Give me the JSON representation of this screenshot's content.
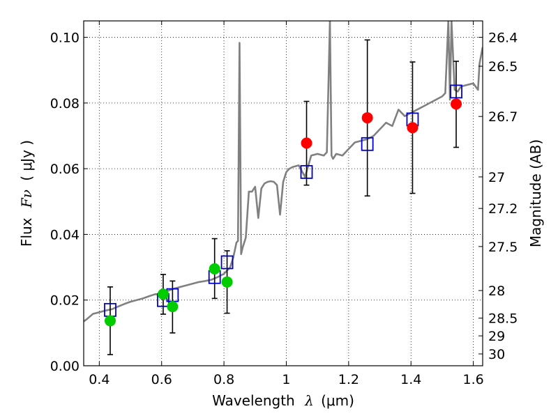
{
  "chart_data": {
    "type": "scatter",
    "title": "",
    "xlabel": "Wavelength",
    "xlabel_symbol": "λ",
    "xlabel_unit": "(μm)",
    "ylabel": "Flux",
    "ylabel_symbol": "Fν",
    "ylabel_unit": "( μJy )",
    "ylabel_right": "Magnitude (AB)",
    "xlim": [
      0.35,
      1.63
    ],
    "ylim": [
      0.0,
      0.105
    ],
    "grid": true,
    "x_ticks": [
      0.4,
      0.6,
      0.8,
      1.0,
      1.2,
      1.4,
      1.6
    ],
    "x_tick_labels": [
      "0.4",
      "0.6",
      "0.8",
      "1",
      "1.2",
      "1.4",
      "1.6"
    ],
    "y_ticks": [
      0.0,
      0.02,
      0.04,
      0.06,
      0.08,
      0.1
    ],
    "y_tick_labels": [
      "0.00",
      "0.02",
      "0.04",
      "0.06",
      "0.08",
      "0.10"
    ],
    "right_ticks": [
      {
        "label": "26.4",
        "flux": 0.1
      },
      {
        "label": "26.5",
        "flux": 0.0912
      },
      {
        "label": "26.7",
        "flux": 0.0759
      },
      {
        "label": "27",
        "flux": 0.0575
      },
      {
        "label": "27.2",
        "flux": 0.0479
      },
      {
        "label": "27.5",
        "flux": 0.0363
      },
      {
        "label": "28",
        "flux": 0.0229
      },
      {
        "label": "28.5",
        "flux": 0.0145
      },
      {
        "label": "29",
        "flux": 0.0091
      },
      {
        "label": "30",
        "flux": 0.0036
      }
    ],
    "series": [
      {
        "kind": "line",
        "color": "#808080",
        "x": [
          0.35,
          0.36,
          0.37,
          0.38,
          0.4,
          0.42,
          0.44,
          0.46,
          0.48,
          0.5,
          0.52,
          0.54,
          0.56,
          0.58,
          0.6,
          0.62,
          0.64,
          0.66,
          0.68,
          0.7,
          0.72,
          0.74,
          0.76,
          0.78,
          0.8,
          0.82,
          0.83,
          0.84,
          0.845,
          0.85,
          0.855,
          0.86,
          0.87,
          0.88,
          0.89,
          0.9,
          0.91,
          0.92,
          0.93,
          0.94,
          0.95,
          0.96,
          0.97,
          0.98,
          0.99,
          1.0,
          1.01,
          1.02,
          1.04,
          1.06,
          1.08,
          1.1,
          1.12,
          1.13,
          1.14,
          1.145,
          1.15,
          1.16,
          1.18,
          1.2,
          1.22,
          1.24,
          1.26,
          1.28,
          1.3,
          1.32,
          1.34,
          1.36,
          1.38,
          1.4,
          1.42,
          1.44,
          1.46,
          1.48,
          1.5,
          1.51,
          1.52,
          1.525,
          1.53,
          1.54,
          1.55,
          1.56,
          1.58,
          1.6,
          1.615,
          1.62,
          1.63
        ],
        "y": [
          0.0135,
          0.0142,
          0.015,
          0.0158,
          0.0163,
          0.0168,
          0.0172,
          0.018,
          0.0188,
          0.0195,
          0.02,
          0.0205,
          0.0212,
          0.0218,
          0.0215,
          0.0228,
          0.0235,
          0.024,
          0.0245,
          0.025,
          0.0255,
          0.0258,
          0.0262,
          0.027,
          0.028,
          0.03,
          0.033,
          0.0375,
          0.038,
          0.0983,
          0.034,
          0.036,
          0.039,
          0.053,
          0.053,
          0.0545,
          0.045,
          0.054,
          0.0555,
          0.056,
          0.0562,
          0.056,
          0.055,
          0.046,
          0.056,
          0.059,
          0.06,
          0.0605,
          0.061,
          0.0575,
          0.064,
          0.0645,
          0.064,
          0.065,
          0.105,
          0.064,
          0.063,
          0.0645,
          0.064,
          0.066,
          0.068,
          0.0685,
          0.069,
          0.07,
          0.072,
          0.074,
          0.073,
          0.078,
          0.076,
          0.077,
          0.078,
          0.079,
          0.08,
          0.081,
          0.082,
          0.083,
          0.105,
          0.081,
          0.105,
          0.084,
          0.0835,
          0.085,
          0.0855,
          0.086,
          0.084,
          0.092,
          0.097
        ]
      },
      {
        "kind": "squares",
        "color": "#0000cc",
        "x": [
          0.435,
          0.605,
          0.635,
          0.77,
          0.81,
          1.065,
          1.26,
          1.405,
          1.545
        ],
        "y": [
          0.017,
          0.02,
          0.0215,
          0.027,
          0.0315,
          0.059,
          0.0675,
          0.075,
          0.0835
        ]
      },
      {
        "kind": "points",
        "color": "#00cc00",
        "x": [
          0.435,
          0.605,
          0.635,
          0.77,
          0.81
        ],
        "y": [
          0.0137,
          0.0218,
          0.018,
          0.0295,
          0.0255
        ],
        "yerr_low": [
          0.0034,
          0.0157,
          0.01,
          0.0205,
          0.016
        ],
        "yerr_high": [
          0.024,
          0.0278,
          0.0258,
          0.0387,
          0.035
        ]
      },
      {
        "kind": "points",
        "color": "#ff0000",
        "x": [
          1.065,
          1.26,
          1.405,
          1.545
        ],
        "y": [
          0.0678,
          0.0755,
          0.0725,
          0.0797
        ],
        "yerr_low": [
          0.055,
          0.0517,
          0.0525,
          0.0665
        ],
        "yerr_high": [
          0.0805,
          0.0992,
          0.0925,
          0.0927
        ]
      }
    ]
  }
}
